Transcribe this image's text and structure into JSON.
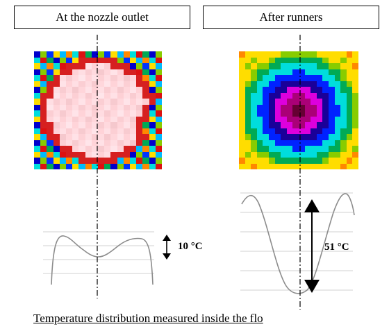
{
  "left_panel": {
    "title": "At the nozzle outlet",
    "delta_label": "10 °C"
  },
  "right_panel": {
    "title": "After runners",
    "delta_label": "51 °C"
  },
  "caption": "Temperature distribution measured inside the flo",
  "colors": {
    "profile_curve": "#8c8c8c",
    "grid_line": "#d0d0d0",
    "axis_line": "#000000"
  }
}
